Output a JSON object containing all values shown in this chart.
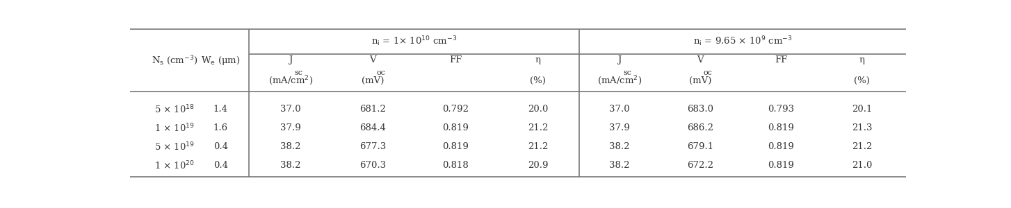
{
  "bg_color": "#ffffff",
  "row_data": [
    [
      "5 x 10^{18}",
      "1.4",
      "37.0",
      "681.2",
      "0.792",
      "20.0",
      "37.0",
      "683.0",
      "0.793",
      "20.1"
    ],
    [
      "1 x 10^{19}",
      "1.6",
      "37.9",
      "684.4",
      "0.819",
      "21.2",
      "37.9",
      "686.2",
      "0.819",
      "21.3"
    ],
    [
      "5 x 10^{19}",
      "0.4",
      "38.2",
      "677.3",
      "0.819",
      "21.2",
      "38.2",
      "679.1",
      "0.819",
      "21.2"
    ],
    [
      "1 x 10^{20}",
      "0.4",
      "38.2",
      "670.3",
      "0.818",
      "20.9",
      "38.2",
      "672.2",
      "0.819",
      "21.0"
    ]
  ],
  "font_size": 9.5,
  "line_color": "#777777",
  "text_color": "#333333",
  "ns_labels_base": [
    "5 x 10",
    "1 x 10",
    "5 x 10",
    "1 x 10"
  ],
  "ns_exponents": [
    "18",
    "19",
    "19",
    "20"
  ],
  "ns_prefixes": [
    "5",
    "1",
    "5",
    "1"
  ]
}
